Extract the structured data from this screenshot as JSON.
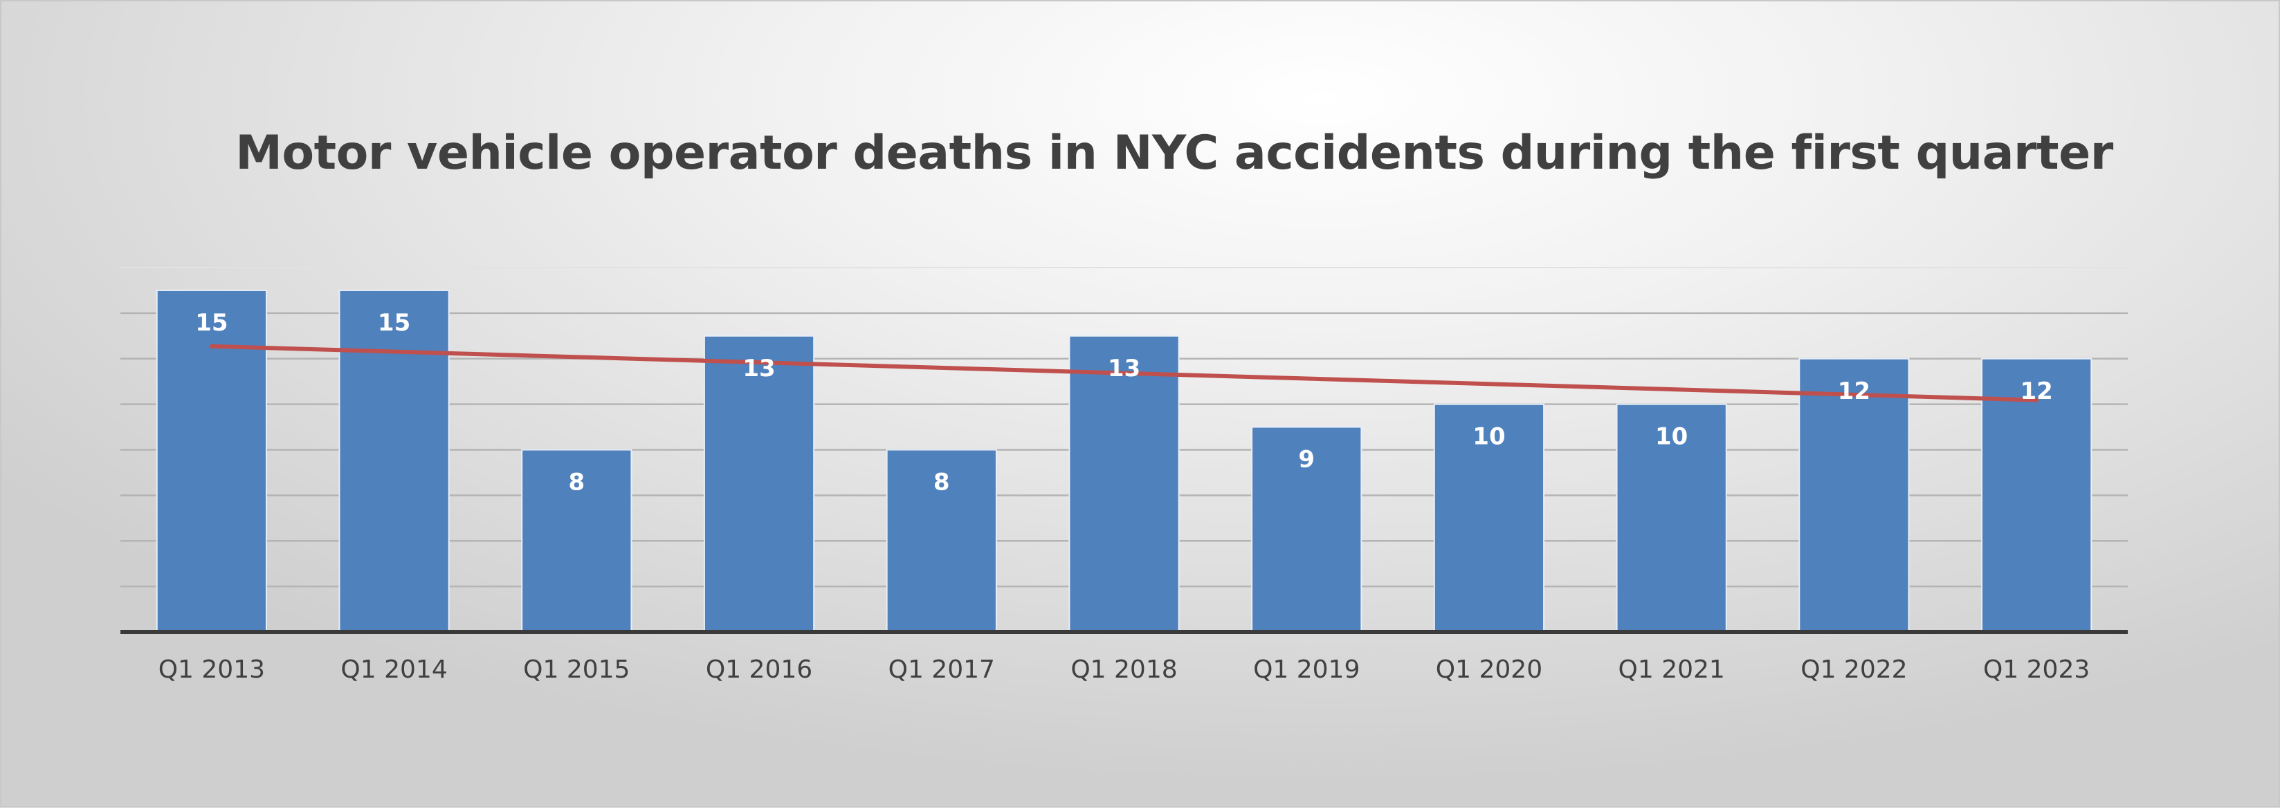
{
  "chart_data": {
    "type": "bar",
    "title": "Motor vehicle operator deaths in NYC accidents during the first quarter",
    "categories": [
      "Q1 2013",
      "Q1 2014",
      "Q1 2015",
      "Q1 2016",
      "Q1 2017",
      "Q1 2018",
      "Q1 2019",
      "Q1 2020",
      "Q1 2021",
      "Q1 2022",
      "Q1 2023"
    ],
    "series": [
      {
        "values": [
          15,
          15,
          8,
          13,
          8,
          13,
          9,
          10,
          10,
          12,
          12
        ],
        "color": "#4f81bd"
      }
    ],
    "trendline": {
      "type": "linear",
      "color": "#c0504d"
    },
    "data_labels": true,
    "xlabel": "",
    "ylabel": "",
    "ylim": [
      0,
      16
    ],
    "y_tick_step": 2,
    "y_tick_labels_visible": false,
    "grid": true
  }
}
